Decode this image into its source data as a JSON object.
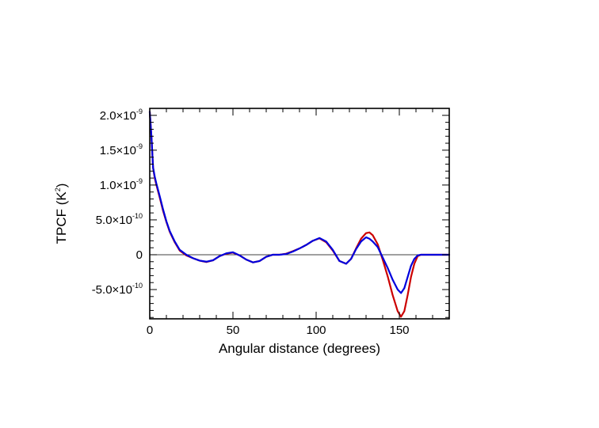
{
  "chart_data": {
    "type": "line",
    "title": "",
    "xlabel": "Angular distance (degrees)",
    "ylabel_main": "TPCF (K",
    "ylabel_sup": "2",
    "ylabel_end": ")",
    "xlim": [
      0,
      180
    ],
    "ylim": [
      -9.2e-10,
      2.1e-09
    ],
    "x_ticks": [
      {
        "value": 0,
        "label": "0"
      },
      {
        "value": 50,
        "label": "50"
      },
      {
        "value": 100,
        "label": "100"
      },
      {
        "value": 150,
        "label": "150"
      }
    ],
    "y_ticks": [
      {
        "value": -5e-10,
        "mant": "-5.0×10",
        "exp": "-10"
      },
      {
        "value": 0,
        "mant": "0",
        "exp": ""
      },
      {
        "value": 5e-10,
        "mant": "5.0×10",
        "exp": "-10"
      },
      {
        "value": 1e-09,
        "mant": "1.0×10",
        "exp": "-9"
      },
      {
        "value": 1.5e-09,
        "mant": "1.5×10",
        "exp": "-9"
      },
      {
        "value": 2e-09,
        "mant": "2.0×10",
        "exp": "-9"
      }
    ],
    "zero_line": true,
    "grid": false,
    "series": [
      {
        "color": "#cc0000",
        "x": [
          0,
          1,
          2,
          3,
          4,
          6,
          8,
          10,
          12,
          15,
          18,
          22,
          26,
          30,
          34,
          38,
          42,
          46,
          50,
          54,
          58,
          62,
          66,
          70,
          74,
          78,
          82,
          86,
          90,
          94,
          98,
          102,
          106,
          110,
          114,
          118,
          121,
          124,
          127,
          130,
          132,
          134,
          137,
          140,
          143,
          146,
          149,
          151,
          153,
          155,
          157,
          159,
          161,
          163,
          166,
          170,
          175,
          180
        ],
        "y": [
          2.05e-09,
          1.7e-09,
          1.25e-09,
          1.1e-09,
          1e-09,
          8.2e-10,
          6.3e-10,
          4.7e-10,
          3.3e-10,
          1.8e-10,
          6e-11,
          -1e-11,
          -5e-11,
          -8.5e-11,
          -1.05e-10,
          -8e-11,
          -2e-11,
          1.5e-11,
          3e-11,
          -1e-11,
          -7e-11,
          -1.1e-10,
          -9e-11,
          -3e-11,
          0,
          0,
          1.5e-11,
          5e-11,
          9e-11,
          1.4e-10,
          2e-10,
          2.35e-10,
          1.8e-10,
          6e-11,
          -9e-11,
          -1.3e-10,
          -6e-11,
          9e-11,
          2.3e-10,
          3.1e-10,
          3.2e-10,
          2.8e-10,
          1.5e-10,
          -7e-11,
          -3.1e-10,
          -5.8e-10,
          -8.1e-10,
          -8.9e-10,
          -8.1e-10,
          -5.8e-10,
          -3.2e-10,
          -1.3e-10,
          -2e-11,
          0,
          0,
          0,
          0,
          0
        ]
      },
      {
        "color": "#0000dd",
        "x": [
          0,
          1,
          2,
          3,
          4,
          6,
          8,
          10,
          12,
          15,
          18,
          22,
          26,
          30,
          34,
          38,
          42,
          46,
          50,
          54,
          58,
          62,
          66,
          70,
          74,
          78,
          82,
          86,
          90,
          94,
          98,
          102,
          106,
          110,
          114,
          118,
          121,
          124,
          127,
          130,
          132,
          134,
          137,
          140,
          143,
          146,
          149,
          151,
          153,
          155,
          157,
          159,
          161,
          163,
          166,
          170,
          175,
          180
        ],
        "y": [
          2.05e-09,
          1.7e-09,
          1.25e-09,
          1.12e-09,
          1.02e-09,
          8.4e-10,
          6.5e-10,
          4.8e-10,
          3.4e-10,
          1.9e-10,
          7e-11,
          0,
          -5e-11,
          -8.5e-11,
          -1e-10,
          -8e-11,
          -2e-11,
          2e-11,
          3.5e-11,
          -1e-11,
          -7e-11,
          -1.1e-10,
          -9e-11,
          -3e-11,
          0,
          0,
          1e-11,
          4.5e-11,
          9e-11,
          1.4e-10,
          2e-10,
          2.4e-10,
          1.9e-10,
          7e-11,
          -9e-11,
          -1.3e-10,
          -6e-11,
          8e-11,
          1.9e-10,
          2.5e-10,
          2.3e-10,
          1.9e-10,
          1.1e-10,
          -4e-11,
          -1.9e-10,
          -3.6e-10,
          -5e-10,
          -5.5e-10,
          -4.8e-10,
          -3.2e-10,
          -1.6e-10,
          -6e-11,
          -1e-11,
          0,
          0,
          0,
          0,
          0
        ]
      }
    ]
  }
}
